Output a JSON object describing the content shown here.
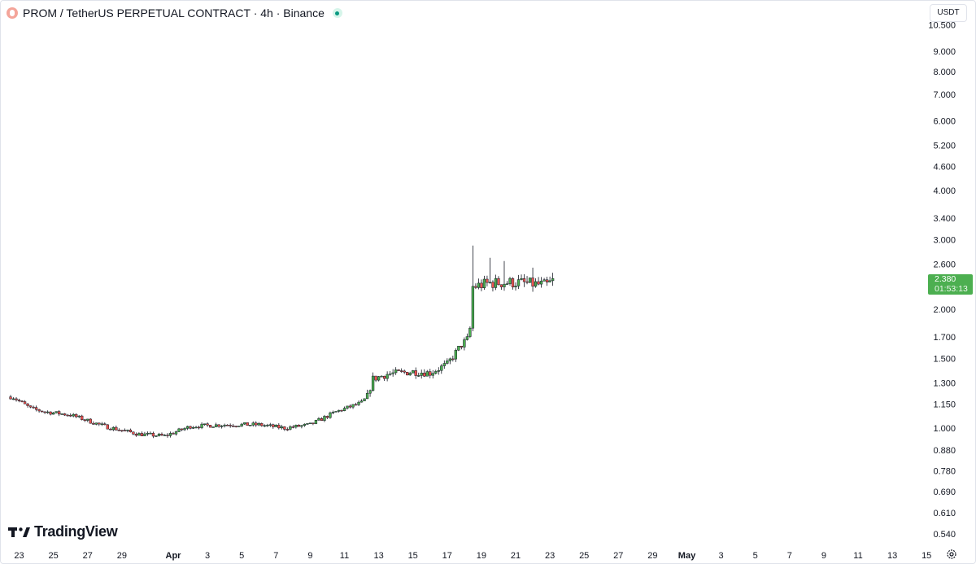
{
  "header": {
    "title": "PROM / TetherUS PERPETUAL CONTRACT · 4h · Binance"
  },
  "currency_button": {
    "label": "USDT"
  },
  "brand": {
    "name": "TradingView"
  },
  "price_tag": {
    "price": "2.380",
    "countdown": "01:53:13",
    "color": "#4caf50"
  },
  "colors": {
    "up": "#4caf50",
    "down": "#ef5350",
    "wick": "#131722",
    "text": "#131722"
  },
  "chart_data": {
    "type": "candlestick",
    "title": "PROM / TetherUS PERPETUAL CONTRACT · 4h · Binance",
    "y_axis": {
      "scale": "log",
      "side": "right",
      "unit": "USDT",
      "ticks": [
        "10.500",
        "9.000",
        "8.000",
        "7.000",
        "6.000",
        "5.200",
        "4.600",
        "4.000",
        "3.400",
        "3.000",
        "2.600",
        "2.000",
        "1.700",
        "1.500",
        "1.300",
        "1.150",
        "1.000",
        "0.880",
        "0.780",
        "0.690",
        "0.610",
        "0.540"
      ],
      "tick_values": [
        10.5,
        9.0,
        8.0,
        7.0,
        6.0,
        5.2,
        4.6,
        4.0,
        3.4,
        3.0,
        2.6,
        2.0,
        1.7,
        1.5,
        1.3,
        1.15,
        1.0,
        0.88,
        0.78,
        0.69,
        0.61,
        0.54
      ]
    },
    "x_axis": {
      "ticks": [
        {
          "label": "23",
          "day": -8,
          "bold": false
        },
        {
          "label": "25",
          "day": -6,
          "bold": false
        },
        {
          "label": "27",
          "day": -4,
          "bold": false
        },
        {
          "label": "29",
          "day": -2,
          "bold": false
        },
        {
          "label": "Apr",
          "day": 1,
          "bold": true
        },
        {
          "label": "3",
          "day": 3,
          "bold": false
        },
        {
          "label": "5",
          "day": 5,
          "bold": false
        },
        {
          "label": "7",
          "day": 7,
          "bold": false
        },
        {
          "label": "9",
          "day": 9,
          "bold": false
        },
        {
          "label": "11",
          "day": 11,
          "bold": false
        },
        {
          "label": "13",
          "day": 13,
          "bold": false
        },
        {
          "label": "15",
          "day": 15,
          "bold": false
        },
        {
          "label": "17",
          "day": 17,
          "bold": false
        },
        {
          "label": "19",
          "day": 19,
          "bold": false
        },
        {
          "label": "21",
          "day": 21,
          "bold": false
        },
        {
          "label": "23",
          "day": 23,
          "bold": false
        },
        {
          "label": "25",
          "day": 25,
          "bold": false
        },
        {
          "label": "27",
          "day": 27,
          "bold": false
        },
        {
          "label": "29",
          "day": 29,
          "bold": false
        },
        {
          "label": "May",
          "day": 31,
          "bold": true
        },
        {
          "label": "3",
          "day": 33,
          "bold": false
        },
        {
          "label": "5",
          "day": 35,
          "bold": false
        },
        {
          "label": "7",
          "day": 37,
          "bold": false
        },
        {
          "label": "9",
          "day": 39,
          "bold": false
        },
        {
          "label": "11",
          "day": 41,
          "bold": false
        },
        {
          "label": "13",
          "day": 43,
          "bold": false
        },
        {
          "label": "15",
          "day": 45,
          "bold": false
        }
      ]
    },
    "last_price": 2.38,
    "price_anchors": [
      {
        "day": -8.4,
        "price": 1.2
      },
      {
        "day": -7.3,
        "price": 1.12
      },
      {
        "day": -6.5,
        "price": 1.1
      },
      {
        "day": -5.0,
        "price": 1.08
      },
      {
        "day": -3.0,
        "price": 1.01
      },
      {
        "day": -1.0,
        "price": 0.965
      },
      {
        "day": 0.5,
        "price": 0.955
      },
      {
        "day": 2.0,
        "price": 1.01
      },
      {
        "day": 4.0,
        "price": 1.02
      },
      {
        "day": 6.0,
        "price": 1.02
      },
      {
        "day": 7.5,
        "price": 1.0
      },
      {
        "day": 9.0,
        "price": 1.02
      },
      {
        "day": 10.5,
        "price": 1.1
      },
      {
        "day": 12.0,
        "price": 1.16
      },
      {
        "day": 12.4,
        "price": 1.21
      },
      {
        "day": 12.6,
        "price": 1.33
      },
      {
        "day": 13.5,
        "price": 1.37
      },
      {
        "day": 15.0,
        "price": 1.39
      },
      {
        "day": 16.0,
        "price": 1.38
      },
      {
        "day": 17.0,
        "price": 1.45
      },
      {
        "day": 17.8,
        "price": 1.62
      },
      {
        "day": 18.3,
        "price": 1.7
      },
      {
        "day": 18.5,
        "price": 2.28
      },
      {
        "day": 19.5,
        "price": 2.33
      },
      {
        "day": 21.0,
        "price": 2.34
      },
      {
        "day": 22.8,
        "price": 2.3
      },
      {
        "day": 23.3,
        "price": 2.38
      }
    ],
    "candle_period_days": 0.16667,
    "spikes": [
      {
        "day": 18.5,
        "high": 2.9
      },
      {
        "day": 19.5,
        "high": 2.7
      },
      {
        "day": 20.3,
        "high": 2.65
      },
      {
        "day": 22.0,
        "high": 2.55
      }
    ]
  }
}
